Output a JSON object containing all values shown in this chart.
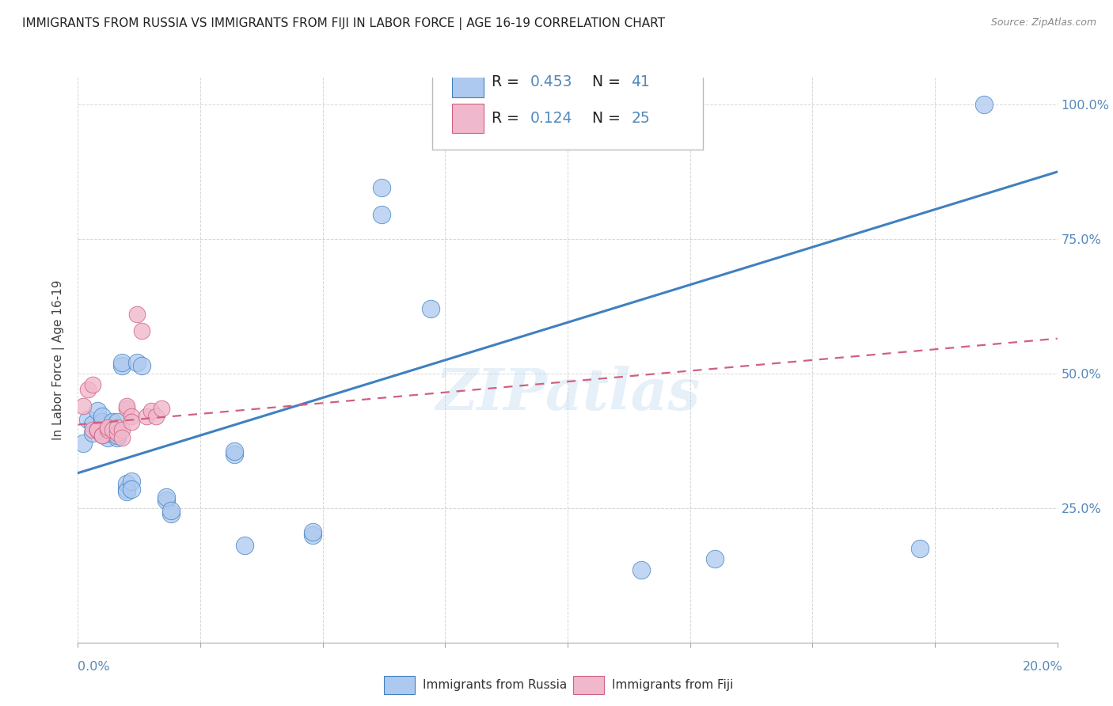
{
  "title": "IMMIGRANTS FROM RUSSIA VS IMMIGRANTS FROM FIJI IN LABOR FORCE | AGE 16-19 CORRELATION CHART",
  "source": "Source: ZipAtlas.com",
  "ylabel": "In Labor Force | Age 16-19",
  "ytick_values": [
    0.0,
    0.25,
    0.5,
    0.75,
    1.0
  ],
  "ytick_labels": [
    "",
    "25.0%",
    "50.0%",
    "75.0%",
    "100.0%"
  ],
  "xlim": [
    0.0,
    0.2
  ],
  "ylim": [
    0.0,
    1.05
  ],
  "watermark": "ZIPatlas",
  "color_russia": "#adc9ef",
  "color_fiji": "#f0b8cc",
  "line_color_russia": "#4080c0",
  "line_color_fiji": "#d06080",
  "axis_label_color": "#5588bb",
  "title_color": "#222222",
  "source_color": "#888888",
  "ylabel_color": "#444444",
  "grid_color": "#cccccc",
  "russia_scatter_x": [
    0.001,
    0.002,
    0.003,
    0.003,
    0.004,
    0.004,
    0.005,
    0.005,
    0.005,
    0.006,
    0.006,
    0.007,
    0.007,
    0.008,
    0.008,
    0.008,
    0.009,
    0.009,
    0.01,
    0.01,
    0.01,
    0.011,
    0.011,
    0.012,
    0.013,
    0.018,
    0.018,
    0.019,
    0.019,
    0.032,
    0.032,
    0.034,
    0.048,
    0.048,
    0.062,
    0.062,
    0.072,
    0.115,
    0.13,
    0.172,
    0.185
  ],
  "russia_scatter_y": [
    0.37,
    0.415,
    0.39,
    0.405,
    0.395,
    0.43,
    0.41,
    0.395,
    0.42,
    0.38,
    0.39,
    0.395,
    0.41,
    0.41,
    0.38,
    0.385,
    0.515,
    0.52,
    0.285,
    0.295,
    0.28,
    0.3,
    0.285,
    0.52,
    0.515,
    0.265,
    0.27,
    0.24,
    0.245,
    0.35,
    0.355,
    0.18,
    0.2,
    0.205,
    0.795,
    0.845,
    0.62,
    0.135,
    0.155,
    0.175,
    1.0
  ],
  "fiji_scatter_x": [
    0.001,
    0.002,
    0.003,
    0.003,
    0.004,
    0.004,
    0.005,
    0.005,
    0.006,
    0.006,
    0.007,
    0.008,
    0.008,
    0.009,
    0.009,
    0.01,
    0.01,
    0.011,
    0.011,
    0.012,
    0.013,
    0.014,
    0.015,
    0.016,
    0.017
  ],
  "fiji_scatter_y": [
    0.44,
    0.47,
    0.48,
    0.395,
    0.395,
    0.395,
    0.385,
    0.385,
    0.395,
    0.4,
    0.395,
    0.39,
    0.4,
    0.395,
    0.38,
    0.435,
    0.44,
    0.42,
    0.41,
    0.61,
    0.58,
    0.42,
    0.43,
    0.42,
    0.435
  ],
  "russia_line_x": [
    0.0,
    0.2
  ],
  "russia_line_y": [
    0.315,
    0.875
  ],
  "fiji_line_x": [
    0.0,
    0.2
  ],
  "fiji_line_y": [
    0.405,
    0.565
  ]
}
